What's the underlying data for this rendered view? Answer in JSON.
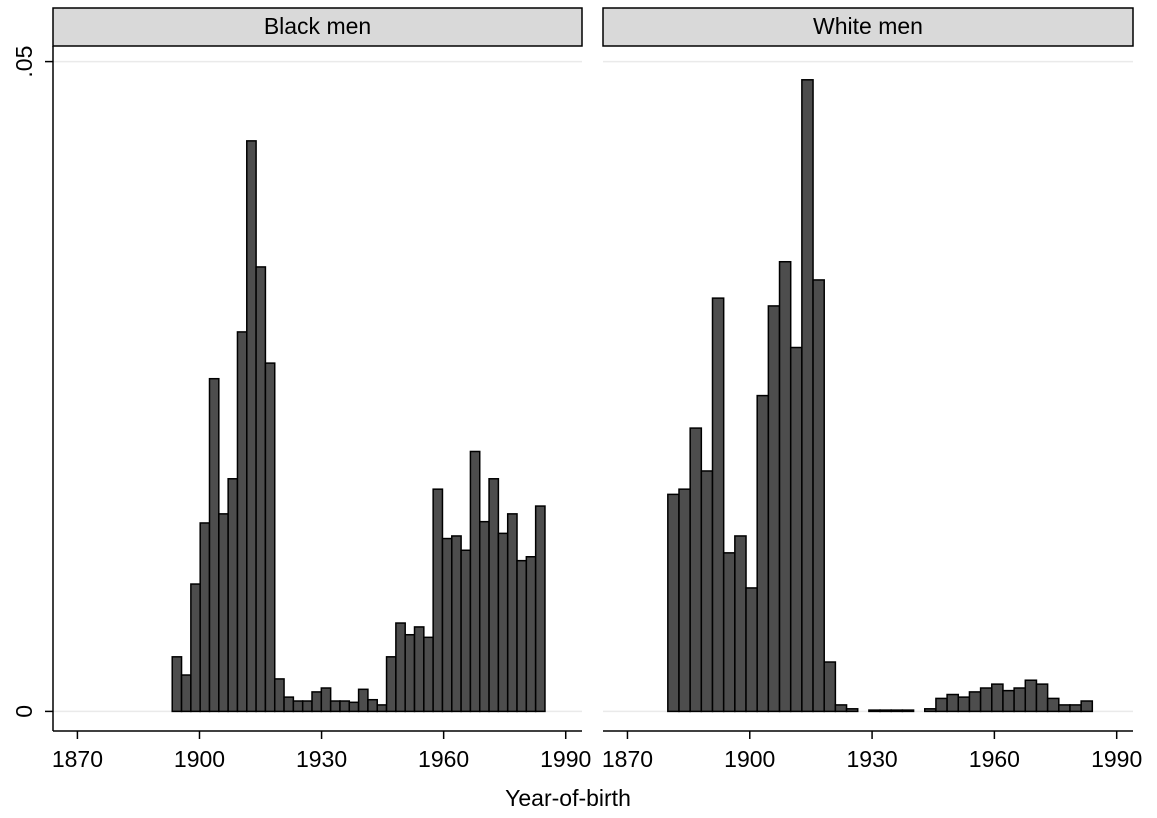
{
  "chart_data": {
    "type": "histogram",
    "xlabel": "Year-of-birth",
    "color": "#4d4d4d",
    "edgecolor": "#000000",
    "grid": true,
    "xlim": [
      1864,
      1994
    ],
    "xticks": [
      1870,
      1900,
      1930,
      1960,
      1990
    ],
    "ylim": [
      -0.0012,
      0.0512
    ],
    "yticks": [
      0,
      {
        "value": 0.05,
        "label": ".05"
      }
    ],
    "panels": [
      {
        "title": "Black men",
        "bins": [
          1893.3,
          1895.59,
          1897.88,
          1900.17,
          1902.46,
          1904.75,
          1907.04,
          1909.33,
          1911.62,
          1913.91,
          1916.2,
          1918.49,
          1920.78,
          1923.07,
          1925.36,
          1927.65,
          1929.94,
          1932.23,
          1934.52,
          1936.81,
          1939.1,
          1941.39,
          1943.68,
          1945.97,
          1948.26,
          1950.55,
          1952.84,
          1955.13,
          1957.42,
          1959.71,
          1962.0,
          1964.29,
          1966.58,
          1968.87,
          1971.16,
          1973.45,
          1975.74,
          1978.03,
          1980.32,
          1982.61,
          1984.9
        ],
        "values": [
          0.0042,
          0.0028,
          0.0098,
          0.0145,
          0.0256,
          0.0152,
          0.0179,
          0.0292,
          0.0439,
          0.0342,
          0.0268,
          0.0025,
          0.0011,
          0.0008,
          0.0008,
          0.0015,
          0.0018,
          0.0008,
          0.0008,
          0.0007,
          0.0017,
          0.0009,
          0.0005,
          0.0042,
          0.0068,
          0.0059,
          0.0065,
          0.0057,
          0.0171,
          0.0133,
          0.0135,
          0.0124,
          0.02,
          0.0146,
          0.0179,
          0.0137,
          0.0152,
          0.0116,
          0.0119,
          0.0158
        ]
      },
      {
        "title": "White men",
        "bins": [
          1879.9,
          1882.64,
          1885.38,
          1888.12,
          1890.86,
          1893.6,
          1896.34,
          1899.08,
          1901.82,
          1904.56,
          1907.3,
          1910.04,
          1912.78,
          1915.52,
          1918.26,
          1921.0,
          1923.74,
          1926.48,
          1929.22,
          1931.96,
          1934.7,
          1937.44,
          1940.18,
          1942.92,
          1945.66,
          1948.4,
          1951.14,
          1953.88,
          1956.62,
          1959.36,
          1962.1,
          1964.84,
          1967.58,
          1970.32,
          1973.06,
          1975.8,
          1978.54,
          1981.28,
          1984.02
        ],
        "values": [
          0.0167,
          0.0171,
          0.0218,
          0.0185,
          0.0318,
          0.0122,
          0.0135,
          0.0095,
          0.0243,
          0.0312,
          0.0346,
          0.028,
          0.0486,
          0.0332,
          0.0038,
          0.0005,
          0.0002,
          0,
          0.0001,
          0.0001,
          0.0001,
          0.0001,
          0,
          0.0002,
          0.001,
          0.0013,
          0.0011,
          0.0015,
          0.0018,
          0.0021,
          0.0016,
          0.0018,
          0.0024,
          0.0021,
          0.001,
          0.0005,
          0.0005,
          0.0008
        ]
      }
    ]
  }
}
